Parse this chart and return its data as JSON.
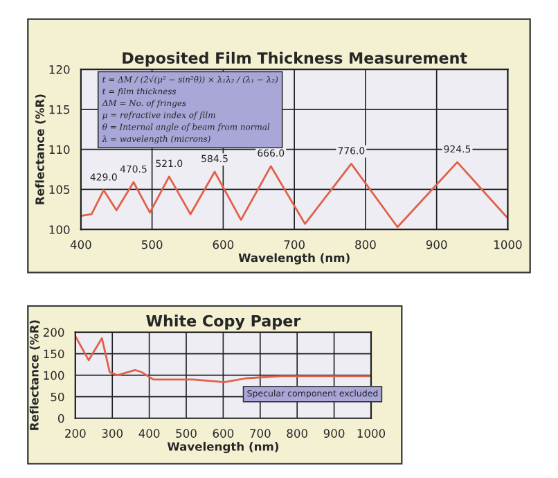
{
  "chart_data": [
    {
      "type": "line",
      "title": "Deposited Film Thickness Measurement",
      "xlabel": "Wavelength (nm)",
      "ylabel": "Reflectance (%R)",
      "x": [
        400,
        415,
        432,
        450,
        474,
        497,
        524,
        554,
        588,
        625,
        667,
        715,
        780,
        845,
        929,
        1000
      ],
      "series": [
        {
          "color": "#e0604a",
          "values": [
            101.7,
            101.9,
            104.9,
            102.4,
            105.9,
            102.1,
            106.6,
            101.9,
            107.2,
            101.2,
            107.9,
            100.7,
            108.2,
            100.3,
            108.4,
            101.4
          ]
        }
      ],
      "xlim": [
        400,
        1000
      ],
      "ylim": [
        100,
        120
      ],
      "xticks": [
        400,
        500,
        600,
        700,
        800,
        900,
        1000
      ],
      "yticks": [
        100,
        105,
        110,
        115,
        120
      ],
      "grid": true,
      "annotations": [
        "t = ΔM / (2√(μ² − sin²θ)) × λ₁λ₂ / (λ₁ − λ₂)",
        "t = film thickness",
        "ΔM = No. of fringes",
        "μ = refractive index of film",
        "θ = Internal angle of beam from normal",
        "λ = wavelength (microns)",
        {
          "text": "429.0",
          "x": 432,
          "y": 104.9
        },
        {
          "text": "470.5",
          "x": 474,
          "y": 105.9
        },
        {
          "text": "521.0",
          "x": 524,
          "y": 106.6
        },
        {
          "text": "584.5",
          "x": 588,
          "y": 107.2
        },
        {
          "text": "666.0",
          "x": 667,
          "y": 107.9
        },
        {
          "text": "776.0",
          "x": 780,
          "y": 108.2
        },
        {
          "text": "924.5",
          "x": 929,
          "y": 108.4
        }
      ]
    },
    {
      "type": "line",
      "title": "White Copy Paper",
      "xlabel": "Wavelength (nm)",
      "ylabel": "Reflectance (%R)",
      "x": [
        200,
        236,
        272,
        293,
        314,
        362,
        380,
        411,
        519,
        603,
        663,
        759,
        1000
      ],
      "series": [
        {
          "color": "#e0604a",
          "values": [
            191,
            135,
            186,
            107,
            100,
            112,
            107,
            90,
            90,
            84,
            93,
            98,
            98
          ]
        }
      ],
      "xlim": [
        200,
        1000
      ],
      "ylim": [
        0,
        200
      ],
      "xticks": [
        200,
        300,
        400,
        500,
        600,
        700,
        800,
        900,
        1000
      ],
      "yticks": [
        0,
        50,
        100,
        150,
        200
      ],
      "grid": true,
      "annotations": [
        "Specular component excluded"
      ]
    }
  ]
}
